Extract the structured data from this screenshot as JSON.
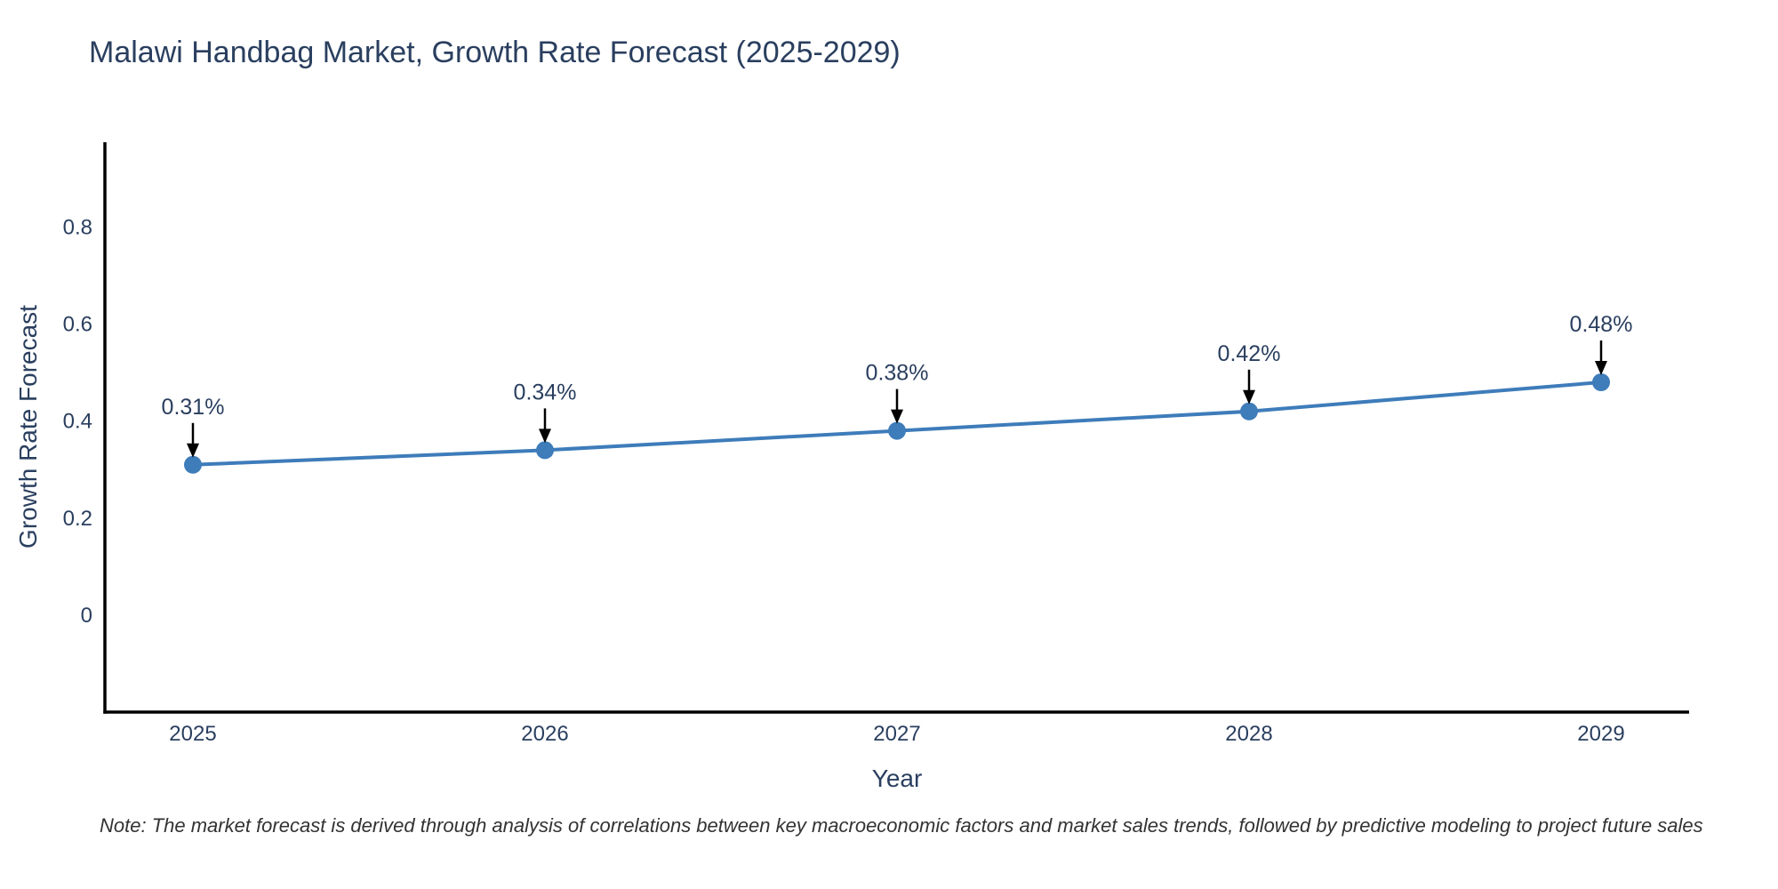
{
  "chart_data": {
    "type": "line",
    "title": "Malawi Handbag Market, Growth Rate Forecast (2025-2029)",
    "xlabel": "Year",
    "ylabel": "Growth Rate Forecast",
    "x": [
      2025,
      2026,
      2027,
      2028,
      2029
    ],
    "values": [
      0.31,
      0.34,
      0.38,
      0.42,
      0.48
    ],
    "point_labels": [
      "0.31%",
      "0.34%",
      "0.38%",
      "0.42%",
      "0.48%"
    ],
    "xtick_labels": [
      "2025",
      "2026",
      "2027",
      "2028",
      "2029"
    ],
    "yticks": [
      0,
      0.2,
      0.4,
      0.6,
      0.8
    ],
    "ytick_labels": [
      "0",
      "0.2",
      "0.4",
      "0.6",
      "0.8"
    ],
    "xlim": [
      2024.75,
      2029.25
    ],
    "ylim": [
      -0.2,
      0.975
    ],
    "grid": false,
    "legend": "none",
    "note": "Note: The market forecast is derived through analysis of correlations between key macroeconomic factors and market sales trends, followed by predictive modeling to project future sales",
    "colors": {
      "line": "#3e7cba",
      "marker": "#3e7cba",
      "axis_line": "#000000",
      "tick_text": "#2a3f5f",
      "annotation_text": "#2a3f5f",
      "annotation_arrow": "#000000",
      "title_text": "#2a3f5f",
      "note_text": "#333333",
      "background": "#ffffff"
    }
  }
}
